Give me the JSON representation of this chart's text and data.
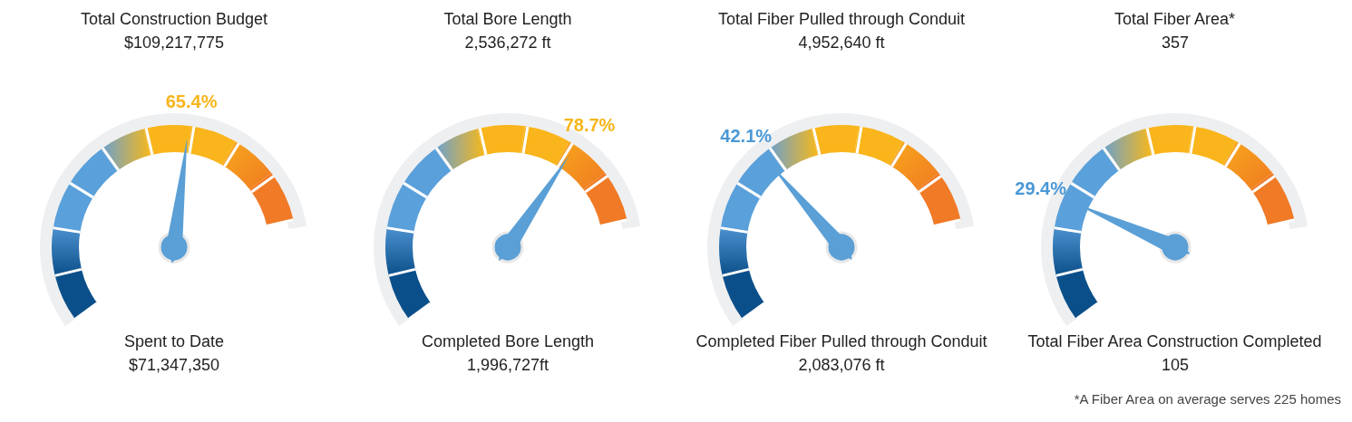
{
  "chart_data": [
    {
      "type": "other",
      "title": "Total Construction Budget",
      "subtitle": "$109,217,775",
      "values": [
        65.4
      ],
      "value_labels": [
        "65.4%"
      ],
      "annotations": [
        "Spent to Date",
        "$71,347,350"
      ]
    },
    {
      "type": "other",
      "title": "Total Bore Length",
      "subtitle": "2,536,272 ft",
      "values": [
        78.7
      ],
      "value_labels": [
        "78.7%"
      ],
      "annotations": [
        "Completed Bore Length",
        "1,996,727ft"
      ]
    },
    {
      "type": "other",
      "title": "Total Fiber Pulled through Conduit",
      "subtitle": "4,952,640 ft",
      "values": [
        42.1
      ],
      "value_labels": [
        "42.1%"
      ],
      "annotations": [
        "Completed Fiber Pulled through Conduit",
        "2,083,076 ft"
      ]
    },
    {
      "type": "other",
      "title": "Total Fiber Area*",
      "subtitle": "357",
      "values": [
        29.4
      ],
      "value_labels": [
        "29.4%"
      ],
      "annotations": [
        "Total Fiber Area Construction Completed",
        "105",
        "*A Fiber Area on average serves 225 homes"
      ]
    }
  ]
}
